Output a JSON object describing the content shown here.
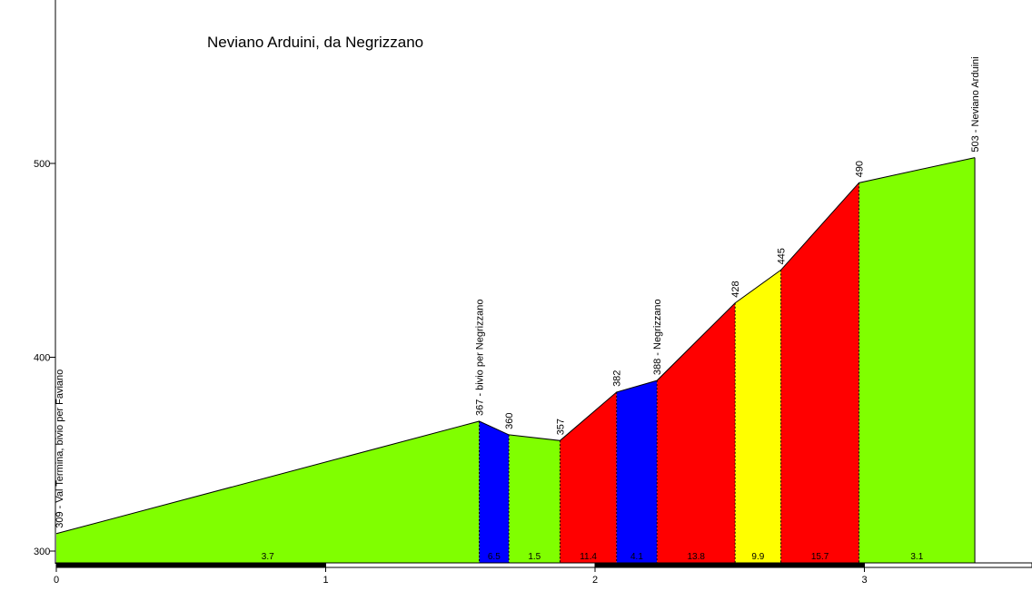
{
  "chart_data": {
    "type": "area",
    "title": "Neviano Arduini, da Negrizzano",
    "xlabel": "",
    "ylabel": "",
    "xlim": [
      0,
      3.65
    ],
    "ylim": [
      296,
      580
    ],
    "x_ticks": [
      "0",
      "1",
      "2",
      "3"
    ],
    "y_ticks": [
      "300",
      "400",
      "500"
    ],
    "grid": false,
    "points": [
      {
        "x": 0.0,
        "y": 309,
        "label": "309 - Val Termina, bivio per Faviano"
      },
      {
        "x": 1.57,
        "y": 367,
        "label": "367 - bivio per Negrizzano"
      },
      {
        "x": 1.68,
        "y": 360,
        "label": "360"
      },
      {
        "x": 1.87,
        "y": 357,
        "label": "357"
      },
      {
        "x": 2.08,
        "y": 382,
        "label": "382"
      },
      {
        "x": 2.23,
        "y": 388,
        "label": "388 - Negrizzano"
      },
      {
        "x": 2.52,
        "y": 428,
        "label": "428"
      },
      {
        "x": 2.69,
        "y": 445,
        "label": "445"
      },
      {
        "x": 2.98,
        "y": 490,
        "label": "490"
      },
      {
        "x": 3.41,
        "y": 503,
        "label": "503 - Neviano Arduini"
      }
    ],
    "segments": [
      {
        "gradient": "3.7",
        "color": "#80ff00"
      },
      {
        "gradient": "6.5",
        "color": "#0000ff"
      },
      {
        "gradient": "1.5",
        "color": "#80ff00"
      },
      {
        "gradient": "11.4",
        "color": "#ff0000"
      },
      {
        "gradient": "4.1",
        "color": "#0000ff"
      },
      {
        "gradient": "13.8",
        "color": "#ff0000"
      },
      {
        "gradient": "9.9",
        "color": "#ffff00"
      },
      {
        "gradient": "15.7",
        "color": "#ff0000"
      },
      {
        "gradient": "3.1",
        "color": "#80ff00"
      }
    ]
  }
}
